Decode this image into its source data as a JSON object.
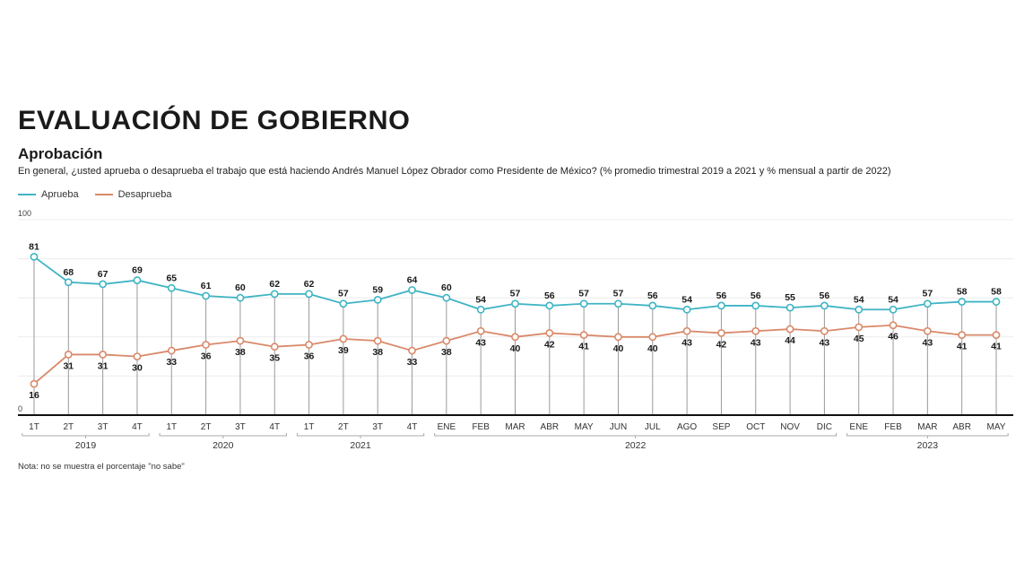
{
  "header": {
    "title": "EVALUACIÓN DE GOBIERNO",
    "subtitle": "Aprobación",
    "question": "En general, ¿usted aprueba o desaprueba el trabajo que está haciendo Andrés Manuel López Obrador como Presidente de México? (% promedio trimestral 2019 a 2021 y % mensual a partir de 2022)"
  },
  "note": "Nota: no se muestra el porcentaje \"no sabe\"",
  "chart_data": {
    "type": "line",
    "ylim": [
      0,
      100
    ],
    "yticks_labeled": [
      "0",
      "100"
    ],
    "grid": true,
    "legend_placement": "top-left",
    "categories": [
      "1T",
      "2T",
      "3T",
      "4T",
      "1T",
      "2T",
      "3T",
      "4T",
      "1T",
      "2T",
      "3T",
      "4T",
      "ENE",
      "FEB",
      "MAR",
      "ABR",
      "MAY",
      "JUN",
      "JUL",
      "AGO",
      "SEP",
      "OCT",
      "NOV",
      "DIC",
      "ENE",
      "FEB",
      "MAR",
      "ABR",
      "MAY"
    ],
    "groups": [
      {
        "label": "2019",
        "start": 0,
        "end": 3
      },
      {
        "label": "2020",
        "start": 4,
        "end": 7
      },
      {
        "label": "2021",
        "start": 8,
        "end": 11
      },
      {
        "label": "2022",
        "start": 12,
        "end": 23
      },
      {
        "label": "2023",
        "start": 24,
        "end": 28
      }
    ],
    "series": [
      {
        "name": "Aprueba",
        "color": "#3fb4c4",
        "values": [
          81,
          68,
          67,
          69,
          65,
          61,
          60,
          62,
          62,
          57,
          59,
          64,
          60,
          54,
          57,
          56,
          57,
          57,
          56,
          54,
          56,
          56,
          55,
          56,
          54,
          54,
          57,
          58,
          58
        ]
      },
      {
        "name": "Desaprueba",
        "color": "#d9896a",
        "values": [
          16,
          31,
          31,
          30,
          33,
          36,
          38,
          35,
          36,
          39,
          38,
          33,
          38,
          43,
          40,
          42,
          41,
          40,
          40,
          43,
          42,
          43,
          44,
          43,
          45,
          46,
          43,
          41,
          41
        ]
      }
    ]
  }
}
